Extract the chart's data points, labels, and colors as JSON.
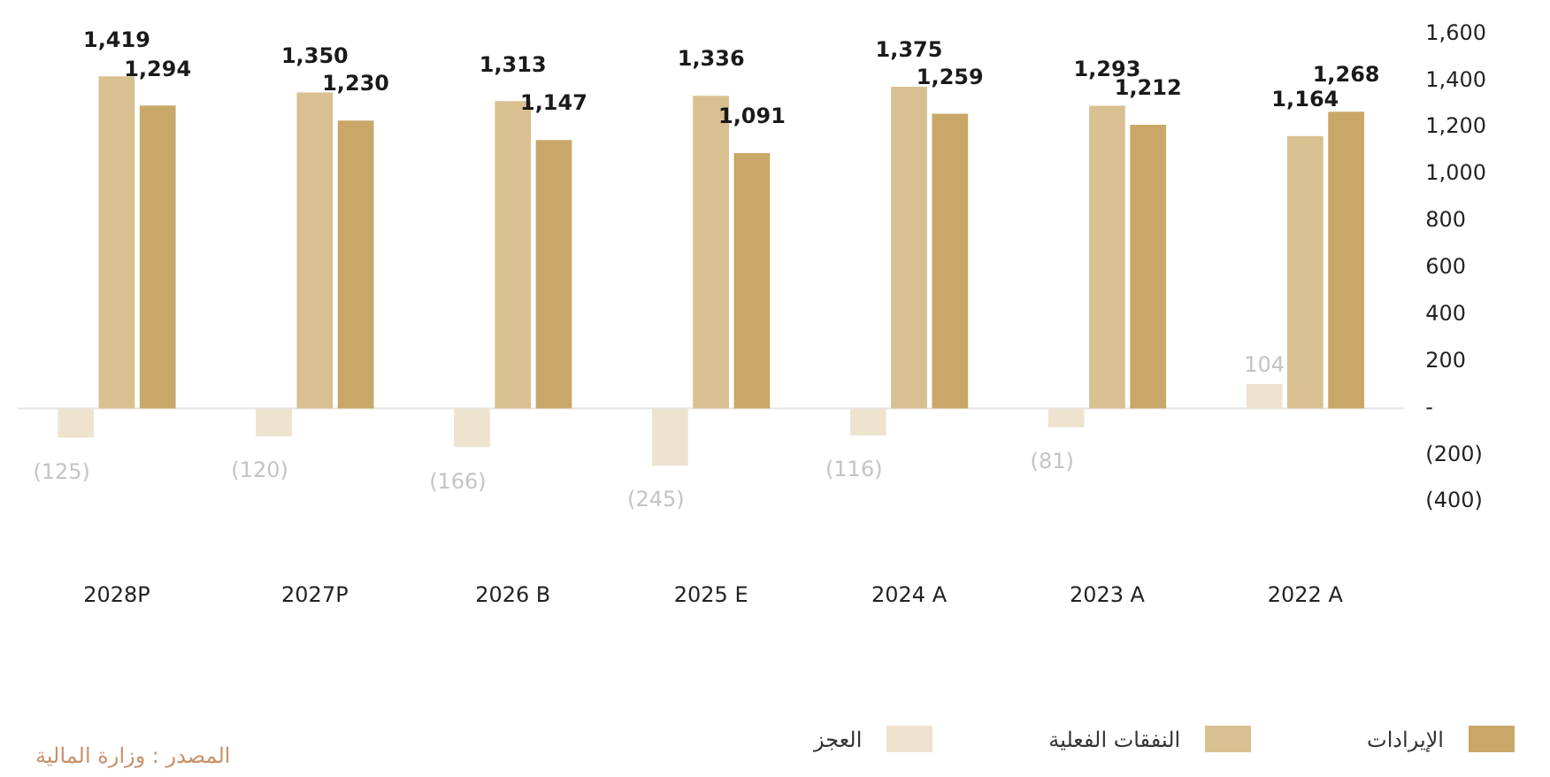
{
  "chart_data": {
    "type": "bar",
    "categories": [
      "2028P",
      "2027P",
      "2026 B",
      "2025 E",
      "2024 A",
      "2023 A",
      "2022 A"
    ],
    "series": [
      {
        "name": "العجز",
        "color": "#ede3cf",
        "values": [
          -125,
          -120,
          -166,
          -245,
          -116,
          -81,
          104
        ],
        "value_labels": [
          "(125)",
          "(120)",
          "(166)",
          "(245)",
          "(116)",
          "(81)",
          "104"
        ]
      },
      {
        "name": "النفقات الفعلية",
        "color": "#d8c090",
        "values": [
          1419,
          1350,
          1313,
          1336,
          1375,
          1293,
          1164
        ],
        "value_labels": [
          "1,419",
          "1,350",
          "1,313",
          "1,336",
          "1,375",
          "1,293",
          "1,164"
        ]
      },
      {
        "name": "الإيرادات",
        "color": "#c8a768",
        "values": [
          1294,
          1230,
          1147,
          1091,
          1259,
          1212,
          1268
        ],
        "value_labels": [
          "1,294",
          "1,230",
          "1,147",
          "1,091",
          "1,259",
          "1,212",
          "1,268"
        ]
      }
    ],
    "ylim": [
      -400,
      1600
    ],
    "yticks": [
      {
        "value": -400,
        "label": "(400)"
      },
      {
        "value": -200,
        "label": "(200)"
      },
      {
        "value": 0,
        "label": "-"
      },
      200,
      400,
      600,
      800,
      {
        "value": 1000,
        "label": "1,000"
      },
      {
        "value": 1200,
        "label": "1,200"
      },
      {
        "value": 1400,
        "label": "1,400"
      },
      {
        "value": 1600,
        "label": "1,600"
      }
    ],
    "grid": false,
    "ref_lines": [
      {
        "axis": "y",
        "value": 0,
        "color": "#e6e6e6"
      }
    ],
    "legend": "bottom",
    "annotations": [
      "المصدر : وزارة المالية"
    ]
  }
}
